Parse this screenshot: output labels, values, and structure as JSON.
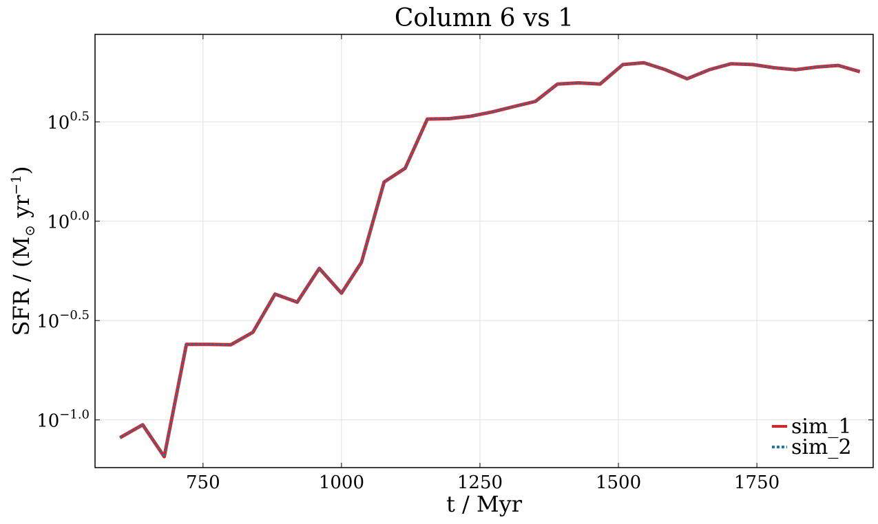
{
  "chart_data": {
    "type": "line",
    "title": "Column 6 vs 1",
    "xlabel": "t / Myr",
    "ylabel_parts": [
      "SFR / (M",
      "⊙",
      " yr",
      "−1",
      ")"
    ],
    "xlim": [
      555,
      1960
    ],
    "ylim_log10": [
      -1.24,
      0.94
    ],
    "y_scale": "log",
    "grid": true,
    "legend_position": "lower-right",
    "x_ticks": [
      750,
      1000,
      1250,
      1500,
      1750
    ],
    "y_ticks": [
      {
        "base": "10",
        "exp": "0.5",
        "log10": 0.5
      },
      {
        "base": "10",
        "exp": "0.0",
        "log10": 0.0
      },
      {
        "base": "10",
        "exp": "−0.5",
        "log10": -0.5
      },
      {
        "base": "10",
        "exp": "−1.0",
        "log10": -1.0
      }
    ],
    "x": [
      600,
      641,
      680,
      720,
      760,
      800,
      840,
      880,
      920,
      960,
      1000,
      1036,
      1077,
      1115,
      1155,
      1195,
      1233,
      1272,
      1311,
      1350,
      1390,
      1428,
      1467,
      1508,
      1546,
      1585,
      1624,
      1664,
      1703,
      1743,
      1781,
      1820,
      1859,
      1897,
      1936
    ],
    "series": [
      {
        "name": "sim_1",
        "color": "#d62728",
        "style": "solid",
        "y": [
          0.0813,
          0.0945,
          0.0653,
          0.2399,
          0.2399,
          0.2388,
          0.2761,
          0.4297,
          0.3912,
          0.5787,
          0.4343,
          0.6209,
          1.574,
          1.8478,
          3.2661,
          3.2811,
          3.3729,
          3.5457,
          3.774,
          4.0042,
          4.9001,
          4.9673,
          4.8999,
          6.1378,
          6.2696,
          5.7833,
          5.2049,
          5.7833,
          6.1943,
          6.1377,
          5.9172,
          5.783,
          5.972,
          6.0818,
          5.6518
        ]
      },
      {
        "name": "sim_2",
        "color": "#1f77b4",
        "style": "dotted",
        "y": [
          0.0813,
          0.0945,
          0.0653,
          0.2399,
          0.2399,
          0.2388,
          0.2761,
          0.4297,
          0.3912,
          0.5787,
          0.4343,
          0.6209,
          1.574,
          1.8478,
          3.2661,
          3.2811,
          3.3729,
          3.5457,
          3.774,
          4.0042,
          4.9001,
          4.9673,
          4.8999,
          6.1378,
          6.2696,
          5.7833,
          5.2049,
          5.7833,
          6.1943,
          6.1377,
          5.9172,
          5.783,
          5.972,
          6.0818,
          5.6518
        ]
      }
    ]
  }
}
